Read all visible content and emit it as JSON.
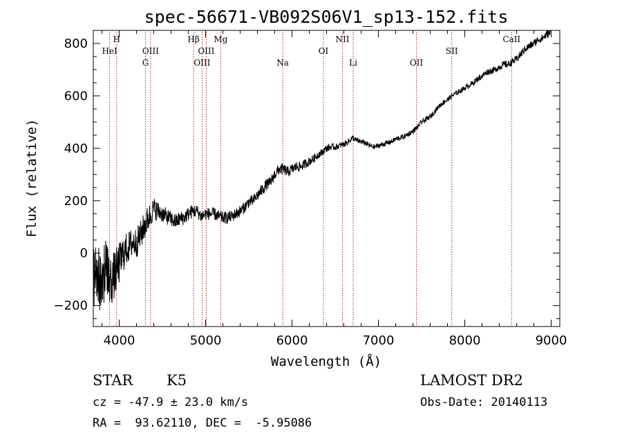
{
  "chart_data": {
    "type": "line",
    "title": "spec-56671-VB092S06V1_sp13-152.fits",
    "xlabel": "Wavelength (Å)",
    "ylabel": "Flux (relative)",
    "xlim": [
      3700,
      9100
    ],
    "ylim": [
      -280,
      850
    ],
    "xticks": [
      4000,
      5000,
      6000,
      7000,
      8000,
      9000
    ],
    "yticks": [
      -200,
      0,
      200,
      400,
      600,
      800
    ],
    "grid": false,
    "line_color": "#000000",
    "marker_color": "#b22222",
    "lines": [
      {
        "label": "HeI",
        "wavelength": 3889,
        "row": "top2"
      },
      {
        "label": "H",
        "wavelength": 3970,
        "row": "top1"
      },
      {
        "label": "G",
        "wavelength": 4304,
        "row": "low"
      },
      {
        "label": "OIII",
        "wavelength": 4363,
        "row": "top2"
      },
      {
        "label": "Hβ",
        "wavelength": 4861,
        "row": "top1"
      },
      {
        "label": "OIII",
        "wavelength": 4959,
        "row": "low"
      },
      {
        "label": "OIII",
        "wavelength": 5007,
        "row": "top2"
      },
      {
        "label": "Mg",
        "wavelength": 5175,
        "row": "top1"
      },
      {
        "label": "Na",
        "wavelength": 5893,
        "row": "low"
      },
      {
        "label": "OI",
        "wavelength": 6364,
        "row": "top2"
      },
      {
        "label": "NII",
        "wavelength": 6584,
        "row": "top1"
      },
      {
        "label": "Li",
        "wavelength": 6708,
        "row": "low"
      },
      {
        "label": "OII",
        "wavelength": 7440,
        "row": "low"
      },
      {
        "label": "SII",
        "wavelength": 7850,
        "row": "top2"
      },
      {
        "label": "CaII",
        "wavelength": 8542,
        "row": "top1"
      }
    ],
    "series": [
      {
        "noise": [
          [
            3700,
            150
          ],
          [
            3900,
            100
          ],
          [
            4100,
            60
          ],
          [
            4300,
            55
          ],
          [
            4500,
            32
          ],
          [
            5000,
            24
          ],
          [
            5500,
            22
          ],
          [
            5900,
            22
          ],
          [
            6500,
            12
          ],
          [
            7000,
            10
          ],
          [
            7500,
            10
          ],
          [
            8000,
            10
          ],
          [
            8500,
            14
          ],
          [
            9100,
            16
          ]
        ],
        "points": [
          [
            3700,
            -60
          ],
          [
            3750,
            -100
          ],
          [
            3800,
            -90
          ],
          [
            3850,
            -60
          ],
          [
            3900,
            -110
          ],
          [
            3950,
            -80
          ],
          [
            4000,
            -40
          ],
          [
            4050,
            0
          ],
          [
            4100,
            20
          ],
          [
            4150,
            40
          ],
          [
            4200,
            40
          ],
          [
            4250,
            70
          ],
          [
            4300,
            110
          ],
          [
            4350,
            140
          ],
          [
            4400,
            170
          ],
          [
            4450,
            160
          ],
          [
            4500,
            150
          ],
          [
            4550,
            140
          ],
          [
            4600,
            130
          ],
          [
            4650,
            120
          ],
          [
            4700,
            130
          ],
          [
            4750,
            135
          ],
          [
            4800,
            150
          ],
          [
            4850,
            160
          ],
          [
            4900,
            160
          ],
          [
            4950,
            140
          ],
          [
            5000,
            150
          ],
          [
            5050,
            150
          ],
          [
            5100,
            150
          ],
          [
            5150,
            140
          ],
          [
            5200,
            135
          ],
          [
            5250,
            135
          ],
          [
            5300,
            140
          ],
          [
            5350,
            150
          ],
          [
            5400,
            160
          ],
          [
            5450,
            175
          ],
          [
            5500,
            195
          ],
          [
            5550,
            200
          ],
          [
            5600,
            220
          ],
          [
            5650,
            240
          ],
          [
            5700,
            260
          ],
          [
            5750,
            270
          ],
          [
            5800,
            300
          ],
          [
            5850,
            320
          ],
          [
            5900,
            320
          ],
          [
            5950,
            310
          ],
          [
            6000,
            320
          ],
          [
            6050,
            330
          ],
          [
            6100,
            330
          ],
          [
            6150,
            340
          ],
          [
            6200,
            350
          ],
          [
            6250,
            360
          ],
          [
            6300,
            375
          ],
          [
            6350,
            385
          ],
          [
            6400,
            400
          ],
          [
            6450,
            405
          ],
          [
            6500,
            405
          ],
          [
            6550,
            410
          ],
          [
            6600,
            415
          ],
          [
            6650,
            425
          ],
          [
            6700,
            440
          ],
          [
            6750,
            430
          ],
          [
            6800,
            425
          ],
          [
            6850,
            420
          ],
          [
            6900,
            410
          ],
          [
            6950,
            405
          ],
          [
            7000,
            410
          ],
          [
            7050,
            415
          ],
          [
            7100,
            420
          ],
          [
            7150,
            425
          ],
          [
            7200,
            435
          ],
          [
            7250,
            440
          ],
          [
            7300,
            445
          ],
          [
            7350,
            455
          ],
          [
            7400,
            465
          ],
          [
            7450,
            480
          ],
          [
            7500,
            500
          ],
          [
            7550,
            510
          ],
          [
            7600,
            520
          ],
          [
            7650,
            540
          ],
          [
            7700,
            560
          ],
          [
            7750,
            575
          ],
          [
            7800,
            585
          ],
          [
            7850,
            600
          ],
          [
            7900,
            610
          ],
          [
            7950,
            620
          ],
          [
            8000,
            630
          ],
          [
            8050,
            640
          ],
          [
            8100,
            650
          ],
          [
            8150,
            665
          ],
          [
            8200,
            675
          ],
          [
            8250,
            690
          ],
          [
            8300,
            695
          ],
          [
            8350,
            700
          ],
          [
            8400,
            710
          ],
          [
            8450,
            720
          ],
          [
            8500,
            720
          ],
          [
            8550,
            730
          ],
          [
            8600,
            740
          ],
          [
            8650,
            760
          ],
          [
            8700,
            780
          ],
          [
            8750,
            790
          ],
          [
            8800,
            800
          ],
          [
            8850,
            815
          ],
          [
            8900,
            820
          ],
          [
            8950,
            835
          ],
          [
            8990,
            840
          ]
        ]
      }
    ]
  },
  "info": {
    "object_class": "STAR",
    "subclass": "K5",
    "survey": "LAMOST DR2",
    "redshift": "cz = -47.9 ± 23.0 km/s",
    "obs_date": "Obs-Date: 20140113",
    "coords": "RA =  93.62110, DEC =  -5.95086"
  }
}
